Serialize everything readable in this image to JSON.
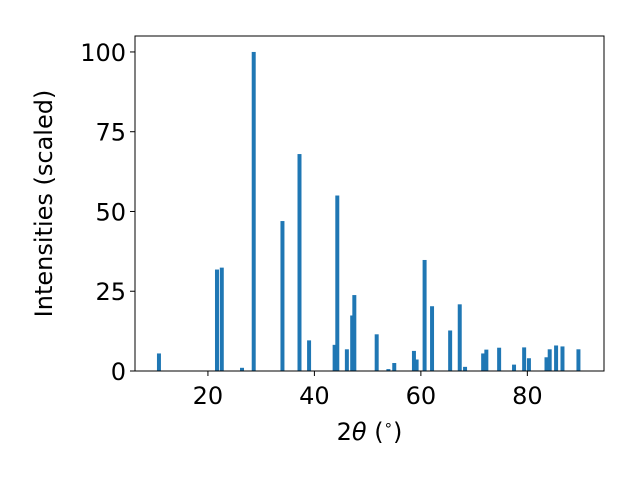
{
  "chart_data": {
    "type": "bar",
    "xlabel_parts": {
      "pre": "2",
      "sym": "θ",
      "post": " (",
      "sup": "∘",
      "end": ")"
    },
    "ylabel": "Intensities (scaled)",
    "xlim": [
      6.3,
      94.4
    ],
    "ylim": [
      0,
      105
    ],
    "xticks": [
      20,
      40,
      60,
      80
    ],
    "yticks": [
      0,
      25,
      50,
      75,
      100
    ],
    "bar_color": "#1f77b4",
    "bar_width": 0.75,
    "grid": false,
    "points": [
      {
        "x": 10.8,
        "y": 5.5
      },
      {
        "x": 21.7,
        "y": 31.8
      },
      {
        "x": 22.6,
        "y": 32.4
      },
      {
        "x": 26.4,
        "y": 1.0
      },
      {
        "x": 28.6,
        "y": 100
      },
      {
        "x": 34.0,
        "y": 47.0
      },
      {
        "x": 37.2,
        "y": 68.0
      },
      {
        "x": 39.0,
        "y": 9.6
      },
      {
        "x": 43.8,
        "y": 8.2
      },
      {
        "x": 44.3,
        "y": 55.0
      },
      {
        "x": 46.1,
        "y": 6.8
      },
      {
        "x": 47.1,
        "y": 17.4
      },
      {
        "x": 47.5,
        "y": 23.8
      },
      {
        "x": 51.7,
        "y": 11.5
      },
      {
        "x": 53.9,
        "y": 0.6
      },
      {
        "x": 55.0,
        "y": 2.5
      },
      {
        "x": 58.7,
        "y": 6.3
      },
      {
        "x": 59.2,
        "y": 3.6
      },
      {
        "x": 60.7,
        "y": 34.8
      },
      {
        "x": 62.1,
        "y": 20.3
      },
      {
        "x": 65.5,
        "y": 12.7
      },
      {
        "x": 67.3,
        "y": 20.9
      },
      {
        "x": 68.3,
        "y": 1.3
      },
      {
        "x": 71.7,
        "y": 5.5
      },
      {
        "x": 72.3,
        "y": 6.7
      },
      {
        "x": 74.7,
        "y": 7.3
      },
      {
        "x": 77.5,
        "y": 2.0
      },
      {
        "x": 79.4,
        "y": 7.4
      },
      {
        "x": 80.3,
        "y": 4.0
      },
      {
        "x": 83.6,
        "y": 4.3
      },
      {
        "x": 84.2,
        "y": 6.8
      },
      {
        "x": 85.4,
        "y": 8.0
      },
      {
        "x": 86.6,
        "y": 7.7
      },
      {
        "x": 89.6,
        "y": 6.8
      }
    ]
  }
}
